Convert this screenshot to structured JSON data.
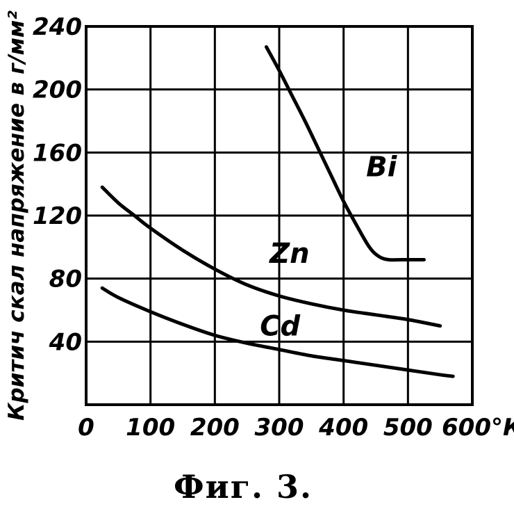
{
  "chart_data": {
    "type": "line",
    "ylabel": "Критич скал напряжение в г/мм²",
    "xlabel": "",
    "x_unit": "°К",
    "caption": "Фиг. 3.",
    "xlim": [
      0,
      600
    ],
    "ylim": [
      0,
      240
    ],
    "x_ticks": [
      "0",
      "100",
      "200",
      "300",
      "400",
      "500",
      "600°К"
    ],
    "y_ticks": [
      "40",
      "80",
      "120",
      "160",
      "200",
      "240"
    ],
    "x_tick_values": [
      0,
      100,
      200,
      300,
      400,
      500,
      600
    ],
    "y_tick_values": [
      40,
      80,
      120,
      160,
      200,
      240
    ],
    "grid": true,
    "series": [
      {
        "name": "Bi",
        "x": [
          280,
          300,
          320,
          340,
          360,
          380,
          400,
          420,
          440,
          455,
          470,
          490,
          510,
          525
        ],
        "y": [
          227,
          212,
          196,
          180,
          163,
          146,
          129,
          114,
          100,
          94,
          92,
          92,
          92,
          92
        ]
      },
      {
        "name": "Zn",
        "x": [
          25,
          50,
          75,
          100,
          150,
          200,
          250,
          300,
          350,
          400,
          450,
          500,
          550
        ],
        "y": [
          138,
          128,
          120,
          112,
          98,
          86,
          76,
          69,
          64,
          60,
          57,
          54,
          50
        ]
      },
      {
        "name": "Cd",
        "x": [
          25,
          50,
          100,
          150,
          200,
          250,
          300,
          350,
          400,
          450,
          500,
          550,
          570
        ],
        "y": [
          74,
          68,
          59,
          51,
          44,
          39,
          35,
          31,
          28,
          25,
          22,
          19,
          18
        ]
      }
    ]
  }
}
